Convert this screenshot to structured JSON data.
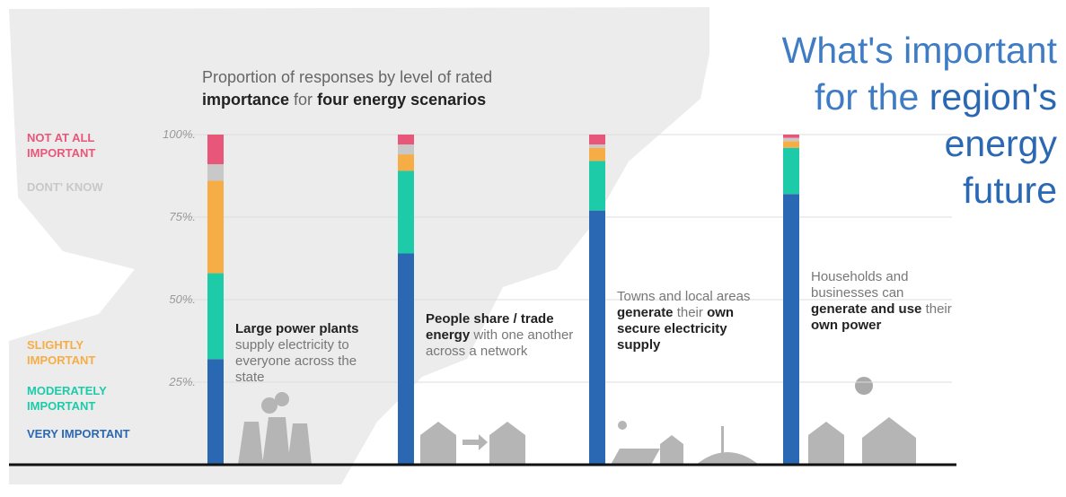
{
  "chart_data": {
    "type": "stacked_bar",
    "title": [
      {
        "text": "What's important",
        "bold": false,
        "line": 0
      },
      {
        "text": "for the",
        "bold": false,
        "line": 1
      },
      {
        "text": "region's",
        "bold": true,
        "line": 1
      },
      {
        "text": "energy",
        "bold": true,
        "line": 2
      },
      {
        "text": "future",
        "bold": true,
        "line": 3
      }
    ],
    "subtitle": [
      {
        "text": "Proportion of responses by level of rated",
        "bold": false
      },
      {
        "text": "importance",
        "bold": true
      },
      {
        "text": "for",
        "bold": false
      },
      {
        "text": "four energy scenarios",
        "bold": true
      }
    ],
    "categories": [
      [
        {
          "text": "Large power plants",
          "bold": true
        },
        {
          "text": "supply electricity to everyone across the state",
          "bold": false
        }
      ],
      [
        {
          "text": "People share / trade energy",
          "bold": true
        },
        {
          "text": "with one another across a network",
          "bold": false
        }
      ],
      [
        {
          "text": "Towns and local areas",
          "bold": false
        },
        {
          "text": "generate",
          "bold": true
        },
        {
          "text": "their",
          "bold": false
        },
        {
          "text": "own secure electricity supply",
          "bold": true
        }
      ],
      [
        {
          "text": "Households and businesses can",
          "bold": false
        },
        {
          "text": "generate and use",
          "bold": true
        },
        {
          "text": "their",
          "bold": false
        },
        {
          "text": "own power",
          "bold": true
        }
      ]
    ],
    "series": [
      {
        "name": "VERY IMPORTANT",
        "color": "#2b68b3",
        "values": [
          32,
          64,
          77,
          82
        ]
      },
      {
        "name": "MODERATELY IMPORTANT",
        "color": "#1ecba9",
        "values": [
          26,
          25,
          15,
          14
        ]
      },
      {
        "name": "SLIGHTLY IMPORTANT",
        "color": "#f6ad45",
        "values": [
          28,
          5,
          4,
          2
        ]
      },
      {
        "name": "DONT' KNOW",
        "color": "#c8c8c8",
        "values": [
          5,
          3,
          1,
          1
        ]
      },
      {
        "name": "NOT AT ALL IMPORTANT",
        "color": "#e8577a",
        "values": [
          9,
          3,
          3,
          1
        ]
      }
    ],
    "ylim": [
      0,
      100
    ],
    "yticks": [
      {
        "value": 25,
        "label": "25%."
      },
      {
        "value": 50,
        "label": "50%."
      },
      {
        "value": 75,
        "label": "75%."
      },
      {
        "value": 100,
        "label": "100%."
      }
    ],
    "grid": true
  }
}
